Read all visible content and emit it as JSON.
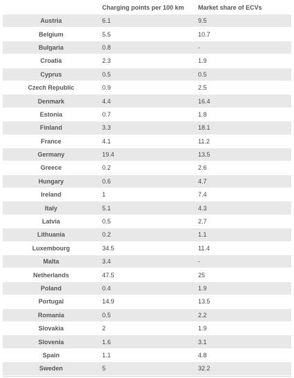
{
  "header": {
    "col0": "",
    "col1": "Charging points per 100 km",
    "col2": "Market share of ECVs"
  },
  "rows": [
    {
      "country": "Austria",
      "charging": "6.1",
      "share": "9.5"
    },
    {
      "country": "Belgium",
      "charging": "5.5",
      "share": "10.7"
    },
    {
      "country": "Bulgaria",
      "charging": "0.8",
      "share": "-"
    },
    {
      "country": "Croatia",
      "charging": "2.3",
      "share": "1.9"
    },
    {
      "country": "Cyprus",
      "charging": "0.5",
      "share": "0.5"
    },
    {
      "country": "Czech Republic",
      "charging": "0.9",
      "share": "2.5"
    },
    {
      "country": "Denmark",
      "charging": "4.4",
      "share": "16.4"
    },
    {
      "country": "Estonia",
      "charging": "0.7",
      "share": "1.8"
    },
    {
      "country": "Finland",
      "charging": "3.3",
      "share": "18.1"
    },
    {
      "country": "France",
      "charging": "4.1",
      "share": "11.2"
    },
    {
      "country": "Germany",
      "charging": "19.4",
      "share": "13.5"
    },
    {
      "country": "Greece",
      "charging": "0.2",
      "share": "2.6"
    },
    {
      "country": "Hungary",
      "charging": "0.6",
      "share": "4.7"
    },
    {
      "country": "Ireland",
      "charging": "1",
      "share": "7.4"
    },
    {
      "country": "Italy",
      "charging": "5.1",
      "share": "4.3"
    },
    {
      "country": "Latvia",
      "charging": "0.5",
      "share": "2.7"
    },
    {
      "country": "Lithuania",
      "charging": "0.2",
      "share": "1.1"
    },
    {
      "country": "Luxembourg",
      "charging": "34.5",
      "share": "11.4"
    },
    {
      "country": "Malta",
      "charging": "3.4",
      "share": "-"
    },
    {
      "country": "Netherlands",
      "charging": "47.5",
      "share": "25"
    },
    {
      "country": "Poland",
      "charging": "0.4",
      "share": "1.9"
    },
    {
      "country": "Portugal",
      "charging": "14.9",
      "share": "13.5"
    },
    {
      "country": "Romania",
      "charging": "0.5",
      "share": "2.2"
    },
    {
      "country": "Slovakia",
      "charging": "2",
      "share": "1.9"
    },
    {
      "country": "Slovenia",
      "charging": "1.6",
      "share": "3.1"
    },
    {
      "country": "Spain",
      "charging": "1.1",
      "share": "4.8"
    },
    {
      "country": "Sweden",
      "charging": "5",
      "share": "32.2"
    }
  ]
}
